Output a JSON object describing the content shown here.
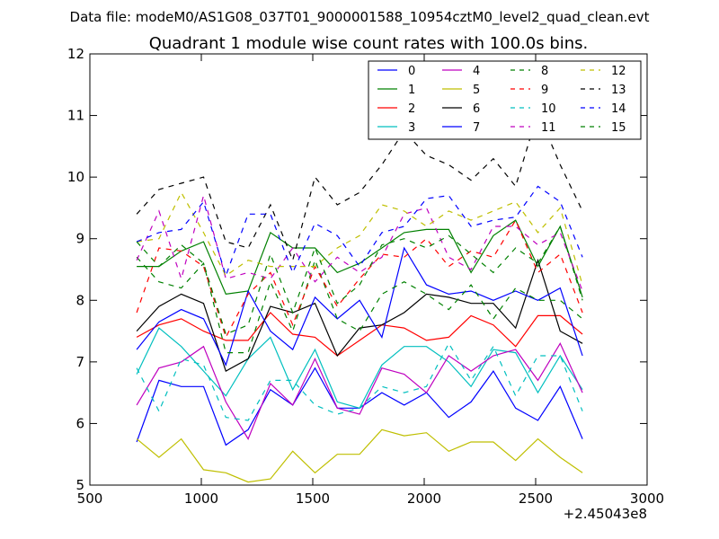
{
  "figure": {
    "suptitle": "Data file: modeM0/AS1G08_037T01_9000001588_10954cztM0_level2_quad_clean.evt",
    "title": "Quadrant 1 module wise count rates with 100.0s bins.",
    "x_offset_label": "+2.45043e8"
  },
  "chart_data": {
    "type": "line",
    "title": "Quadrant 1 module wise count rates with 100.0s bins.",
    "xlabel": "",
    "ylabel": "",
    "xlim": [
      500,
      3000
    ],
    "ylim": [
      5,
      12
    ],
    "x_ticks": [
      500,
      1000,
      1500,
      2000,
      2500,
      3000
    ],
    "y_ticks": [
      5,
      6,
      7,
      8,
      9,
      10,
      11,
      12
    ],
    "grid": false,
    "legend": {
      "position": "top-right",
      "columns": 4
    },
    "x": [
      710,
      810,
      910,
      1010,
      1110,
      1210,
      1310,
      1410,
      1510,
      1610,
      1710,
      1810,
      1910,
      2010,
      2110,
      2210,
      2310,
      2410,
      2510,
      2610,
      2710
    ],
    "series": [
      {
        "name": "0",
        "color": "#0000ff",
        "dash": "solid",
        "values": [
          5.7,
          6.7,
          6.6,
          6.6,
          5.65,
          5.9,
          6.55,
          6.3,
          6.9,
          6.25,
          6.25,
          6.5,
          6.3,
          6.5,
          6.1,
          6.35,
          6.85,
          6.25,
          6.05,
          6.6,
          5.75
        ]
      },
      {
        "name": "1",
        "color": "#008000",
        "dash": "solid",
        "values": [
          8.55,
          8.55,
          8.8,
          8.95,
          8.1,
          8.15,
          9.1,
          8.85,
          8.85,
          8.45,
          8.6,
          8.85,
          9.1,
          9.15,
          9.15,
          8.45,
          9.05,
          9.3,
          8.55,
          9.2,
          8.05
        ]
      },
      {
        "name": "2",
        "color": "#ff0000",
        "dash": "solid",
        "values": [
          7.4,
          7.6,
          7.7,
          7.5,
          7.35,
          7.35,
          7.8,
          7.45,
          7.4,
          7.1,
          7.35,
          7.6,
          7.55,
          7.35,
          7.4,
          7.75,
          7.6,
          7.25,
          7.75,
          7.75,
          7.45
        ]
      },
      {
        "name": "3",
        "color": "#00bfbf",
        "dash": "solid",
        "values": [
          6.8,
          7.55,
          7.25,
          6.85,
          6.45,
          7.05,
          7.4,
          6.55,
          7.2,
          6.35,
          6.25,
          6.95,
          7.25,
          7.25,
          7.0,
          6.6,
          7.2,
          7.15,
          6.5,
          7.1,
          6.55
        ]
      },
      {
        "name": "4",
        "color": "#bf00bf",
        "dash": "solid",
        "values": [
          6.3,
          6.9,
          7.0,
          7.25,
          6.35,
          5.75,
          6.65,
          6.3,
          7.05,
          6.25,
          6.15,
          6.9,
          6.8,
          6.5,
          7.1,
          6.85,
          7.1,
          7.2,
          6.7,
          7.3,
          6.5
        ]
      },
      {
        "name": "5",
        "color": "#bfbf00",
        "dash": "solid",
        "values": [
          5.75,
          5.45,
          5.75,
          5.25,
          5.2,
          5.05,
          5.1,
          5.55,
          5.2,
          5.5,
          5.5,
          5.9,
          5.8,
          5.85,
          5.55,
          5.7,
          5.7,
          5.4,
          5.75,
          5.45,
          5.2
        ]
      },
      {
        "name": "6",
        "color": "#000000",
        "dash": "solid",
        "values": [
          7.5,
          7.9,
          8.1,
          7.95,
          6.85,
          7.05,
          7.9,
          7.8,
          7.95,
          7.1,
          7.55,
          7.6,
          7.8,
          8.1,
          8.05,
          7.95,
          7.95,
          7.55,
          8.65,
          7.5,
          7.3
        ]
      },
      {
        "name": "7",
        "color": "#0000ff",
        "dash": "solid",
        "values": [
          7.2,
          7.65,
          7.85,
          7.7,
          6.95,
          8.15,
          7.5,
          7.2,
          8.05,
          7.7,
          8.0,
          7.4,
          8.85,
          8.25,
          8.1,
          8.15,
          8.0,
          8.15,
          8.0,
          8.2,
          7.1
        ]
      },
      {
        "name": "8",
        "color": "#008000",
        "dash": "dashed",
        "values": [
          8.7,
          8.3,
          8.2,
          8.6,
          7.15,
          7.15,
          8.3,
          7.5,
          8.65,
          7.7,
          7.5,
          8.1,
          8.3,
          8.1,
          7.85,
          8.25,
          7.7,
          8.2,
          8.0,
          8.0,
          7.7
        ]
      },
      {
        "name": "9",
        "color": "#ff0000",
        "dash": "dashed",
        "values": [
          7.8,
          8.85,
          8.8,
          8.55,
          7.4,
          8.1,
          8.45,
          7.6,
          8.55,
          7.9,
          8.35,
          8.75,
          8.7,
          9.0,
          8.55,
          8.8,
          8.7,
          9.3,
          8.45,
          8.75,
          7.8
        ]
      },
      {
        "name": "10",
        "color": "#00bfbf",
        "dash": "dashed",
        "values": [
          6.9,
          6.2,
          7.05,
          6.95,
          6.1,
          6.05,
          6.7,
          6.7,
          6.3,
          6.15,
          6.25,
          6.6,
          6.5,
          6.6,
          7.3,
          6.7,
          7.25,
          6.45,
          7.1,
          7.1,
          6.2
        ]
      },
      {
        "name": "11",
        "color": "#bf00bf",
        "dash": "dashed",
        "values": [
          8.65,
          9.45,
          8.35,
          9.7,
          8.35,
          8.45,
          8.35,
          8.85,
          8.3,
          8.7,
          8.45,
          8.7,
          9.4,
          9.5,
          8.7,
          8.5,
          9.2,
          9.2,
          8.9,
          9.1,
          8.15
        ]
      },
      {
        "name": "12",
        "color": "#bfbf00",
        "dash": "dashed",
        "values": [
          8.95,
          9.0,
          9.75,
          9.1,
          8.4,
          8.65,
          8.55,
          8.55,
          8.55,
          8.85,
          9.05,
          9.55,
          9.45,
          9.2,
          9.45,
          9.3,
          9.45,
          9.6,
          9.1,
          9.5,
          8.25
        ]
      },
      {
        "name": "13",
        "color": "#000000",
        "dash": "dashed",
        "values": [
          9.4,
          9.8,
          9.9,
          10.0,
          8.95,
          8.85,
          9.55,
          8.65,
          10.0,
          9.55,
          9.75,
          10.2,
          10.75,
          10.35,
          10.2,
          9.95,
          10.3,
          9.85,
          11.05,
          10.2,
          9.45
        ]
      },
      {
        "name": "14",
        "color": "#0000ff",
        "dash": "dashed",
        "values": [
          8.95,
          9.1,
          9.15,
          9.6,
          8.4,
          9.4,
          9.4,
          8.45,
          9.25,
          9.05,
          8.55,
          9.1,
          9.2,
          9.65,
          9.7,
          9.2,
          9.3,
          9.35,
          9.85,
          9.6,
          8.7
        ]
      },
      {
        "name": "15",
        "color": "#008000",
        "dash": "dashed",
        "values": [
          8.95,
          8.55,
          8.9,
          8.6,
          7.45,
          7.6,
          8.75,
          7.8,
          8.85,
          7.95,
          8.25,
          8.9,
          9.0,
          8.85,
          9.05,
          8.75,
          8.45,
          8.85,
          8.6,
          9.2,
          8.0
        ]
      }
    ]
  }
}
